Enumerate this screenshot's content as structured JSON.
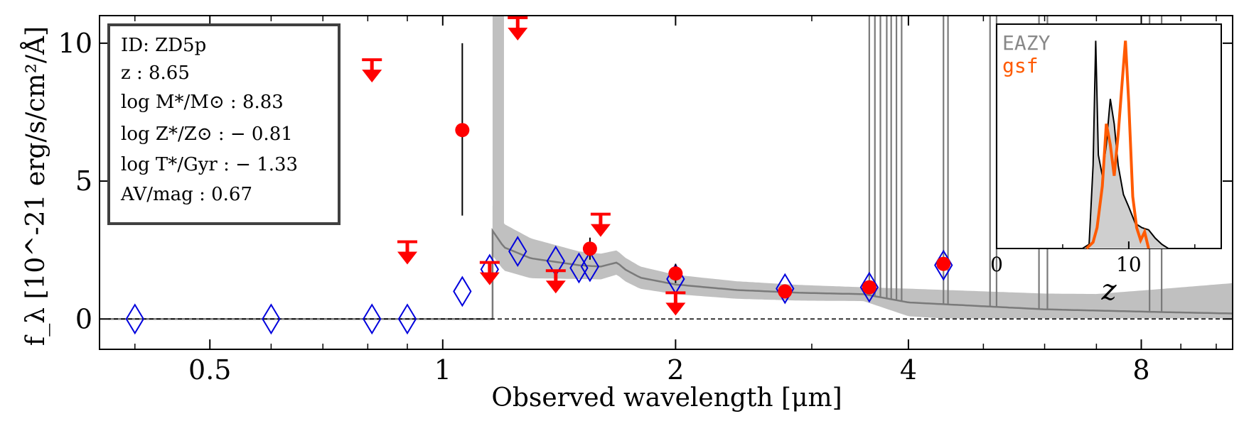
{
  "chart_data": {
    "type": "scatter",
    "xlabel": "Observed wavelength [μm]",
    "ylabel": "f_λ [10^-21 erg/s/cm²/Å]",
    "xscale": "log",
    "xlim": [
      0.36,
      10.5
    ],
    "ylim": [
      -1.1,
      11
    ],
    "x_ticks": [
      0.5,
      1,
      2,
      4,
      8
    ],
    "x_tick_labels": [
      "0.5",
      "1",
      "2",
      "4",
      "8"
    ],
    "y_ticks": [
      0,
      5,
      10
    ],
    "y_tick_labels": [
      "0",
      "5",
      "10"
    ],
    "zero_line": true,
    "model_sed": {
      "break_um": 1.16,
      "median": [
        [
          1.16,
          3.2
        ],
        [
          1.2,
          2.6
        ],
        [
          1.3,
          2.2
        ],
        [
          1.5,
          1.95
        ],
        [
          1.6,
          1.9
        ],
        [
          1.68,
          2.05
        ],
        [
          1.72,
          1.8
        ],
        [
          1.8,
          1.5
        ],
        [
          2.0,
          1.25
        ],
        [
          2.4,
          1.05
        ],
        [
          2.9,
          0.95
        ],
        [
          3.5,
          0.9
        ],
        [
          4.0,
          0.6
        ],
        [
          6.0,
          0.35
        ],
        [
          8.5,
          0.25
        ],
        [
          10.5,
          0.2
        ]
      ],
      "band_width": [
        [
          1.16,
          0.9
        ],
        [
          1.5,
          0.5
        ],
        [
          2.0,
          0.35
        ],
        [
          3.5,
          0.25
        ],
        [
          4.0,
          0.5
        ],
        [
          7.0,
          0.6
        ],
        [
          10.5,
          1.1
        ]
      ]
    },
    "detections": [
      {
        "x": 1.06,
        "y": 6.85,
        "err_low": 3.1,
        "err_high": 3.15
      },
      {
        "x": 1.55,
        "y": 2.55,
        "err_low": 0.4,
        "err_high": 0.4
      },
      {
        "x": 2.0,
        "y": 1.65,
        "err_low": 0.35,
        "err_high": 0.35
      },
      {
        "x": 2.77,
        "y": 1.0,
        "err_low": 0.15,
        "err_high": 0.15
      },
      {
        "x": 3.56,
        "y": 1.15,
        "err_low": 0.15,
        "err_high": 0.15
      },
      {
        "x": 4.44,
        "y": 2.0,
        "err_low": 0.15,
        "err_high": 0.15
      }
    ],
    "upper_limits": [
      {
        "x": 0.81,
        "y": 9.4
      },
      {
        "x": 0.9,
        "y": 2.8
      },
      {
        "x": 1.15,
        "y": 2.05
      },
      {
        "x": 1.25,
        "y": 11.0
      },
      {
        "x": 1.4,
        "y": 1.75
      },
      {
        "x": 1.6,
        "y": 3.8
      },
      {
        "x": 2.0,
        "y": 0.95
      }
    ],
    "model_photometry": [
      {
        "x": 0.4,
        "y": 0.0
      },
      {
        "x": 0.6,
        "y": 0.0
      },
      {
        "x": 0.81,
        "y": 0.0
      },
      {
        "x": 0.9,
        "y": 0.0
      },
      {
        "x": 1.06,
        "y": 1.0
      },
      {
        "x": 1.15,
        "y": 1.8
      },
      {
        "x": 1.25,
        "y": 2.45
      },
      {
        "x": 1.4,
        "y": 2.1
      },
      {
        "x": 1.5,
        "y": 1.85
      },
      {
        "x": 1.55,
        "y": 1.9
      },
      {
        "x": 2.0,
        "y": 1.45
      },
      {
        "x": 2.77,
        "y": 1.1
      },
      {
        "x": 3.56,
        "y": 1.15
      },
      {
        "x": 4.44,
        "y": 1.95
      }
    ],
    "emission_lines_um": [
      3.56,
      3.62,
      3.68,
      3.75,
      3.8,
      3.86,
      3.92,
      4.44,
      4.5,
      5.1,
      5.2,
      5.9,
      6.05,
      8.2,
      8.5
    ],
    "info_box": {
      "id": "ID: ZD5p",
      "z": "z : 8.65",
      "mass": "log M*/M⊙ : 8.83",
      "metallicity": "log Z*/Z⊙ : − 0.81",
      "age": "log T*/Gyr : − 1.33",
      "dust": "AV/mag : 0.67"
    },
    "inset": {
      "type": "area",
      "xlabel": "z",
      "xlim": [
        0,
        17
      ],
      "x_ticks": [
        0,
        10
      ],
      "x_tick_labels": [
        "0",
        "10"
      ],
      "ylim": [
        0,
        1.08
      ],
      "legend": [
        "EAZY",
        "gsf"
      ],
      "eazy_pz": [
        [
          6.5,
          0
        ],
        [
          7.0,
          0.02
        ],
        [
          7.3,
          0.4
        ],
        [
          7.5,
          1.0
        ],
        [
          7.7,
          0.45
        ],
        [
          8.0,
          0.35
        ],
        [
          8.3,
          0.5
        ],
        [
          8.6,
          0.72
        ],
        [
          8.9,
          0.6
        ],
        [
          9.2,
          0.4
        ],
        [
          9.6,
          0.26
        ],
        [
          10.0,
          0.2
        ],
        [
          10.5,
          0.12
        ],
        [
          11.0,
          0.1
        ],
        [
          11.5,
          0.09
        ],
        [
          12.0,
          0.05
        ],
        [
          12.5,
          0.02
        ],
        [
          13.0,
          0
        ]
      ],
      "gsf_pz": [
        [
          6.8,
          0
        ],
        [
          7.3,
          0.03
        ],
        [
          7.6,
          0.1
        ],
        [
          8.0,
          0.3
        ],
        [
          8.3,
          0.6
        ],
        [
          8.6,
          0.5
        ],
        [
          8.9,
          0.35
        ],
        [
          9.2,
          0.55
        ],
        [
          9.5,
          0.8
        ],
        [
          9.75,
          1.0
        ],
        [
          10.0,
          0.7
        ],
        [
          10.3,
          0.25
        ],
        [
          10.6,
          0.1
        ],
        [
          10.9,
          0.04
        ],
        [
          11.2,
          0.08
        ],
        [
          11.5,
          0
        ]
      ]
    },
    "colors": {
      "detection": "#ff0000",
      "model_phot": "#0000dd",
      "sed_band": "#c0c0c0",
      "sed_line": "#7a7a7a",
      "eazy": "#888888",
      "gsf": "#ff5a00"
    }
  }
}
